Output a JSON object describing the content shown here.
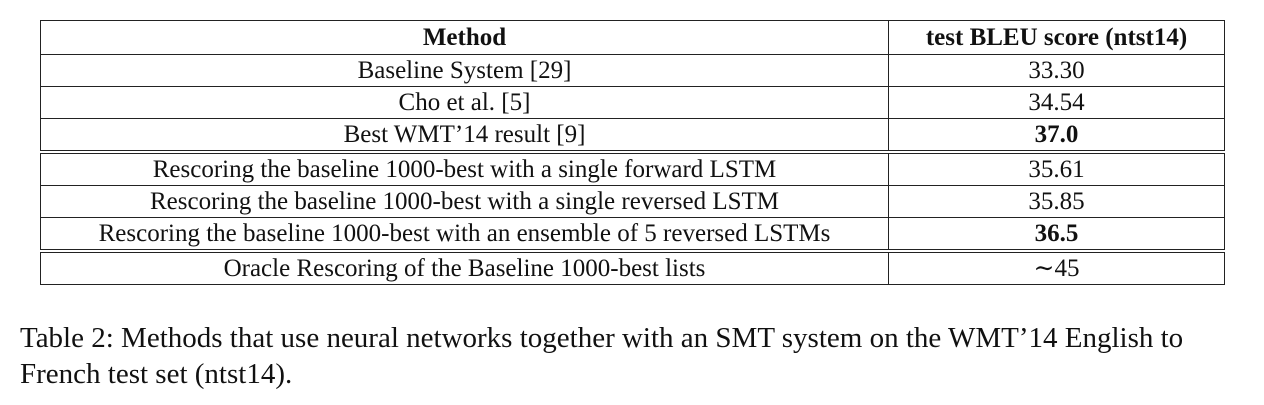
{
  "table": {
    "headers": [
      "Method",
      "test BLEU score (ntst14)"
    ],
    "groups": [
      [
        {
          "method": "Baseline System [29]",
          "score": "33.30",
          "bold": false
        },
        {
          "method": "Cho et al. [5]",
          "score": "34.54",
          "bold": false
        },
        {
          "method": "Best WMT’14 result [9]",
          "score": "37.0",
          "bold": true
        }
      ],
      [
        {
          "method": "Rescoring the baseline 1000-best with a single forward LSTM",
          "score": "35.61",
          "bold": false
        },
        {
          "method": "Rescoring the baseline 1000-best with a single reversed LSTM",
          "score": "35.85",
          "bold": false
        },
        {
          "method": "Rescoring the baseline 1000-best with an ensemble of 5 reversed LSTMs",
          "score": "36.5",
          "bold": true
        }
      ],
      [
        {
          "method": "Oracle Rescoring of the Baseline 1000-best lists",
          "score": "∼45",
          "bold": false
        }
      ]
    ]
  },
  "caption": "Table 2: Methods that use neural networks together with an SMT system on the WMT’14 English to French test set (ntst14)."
}
